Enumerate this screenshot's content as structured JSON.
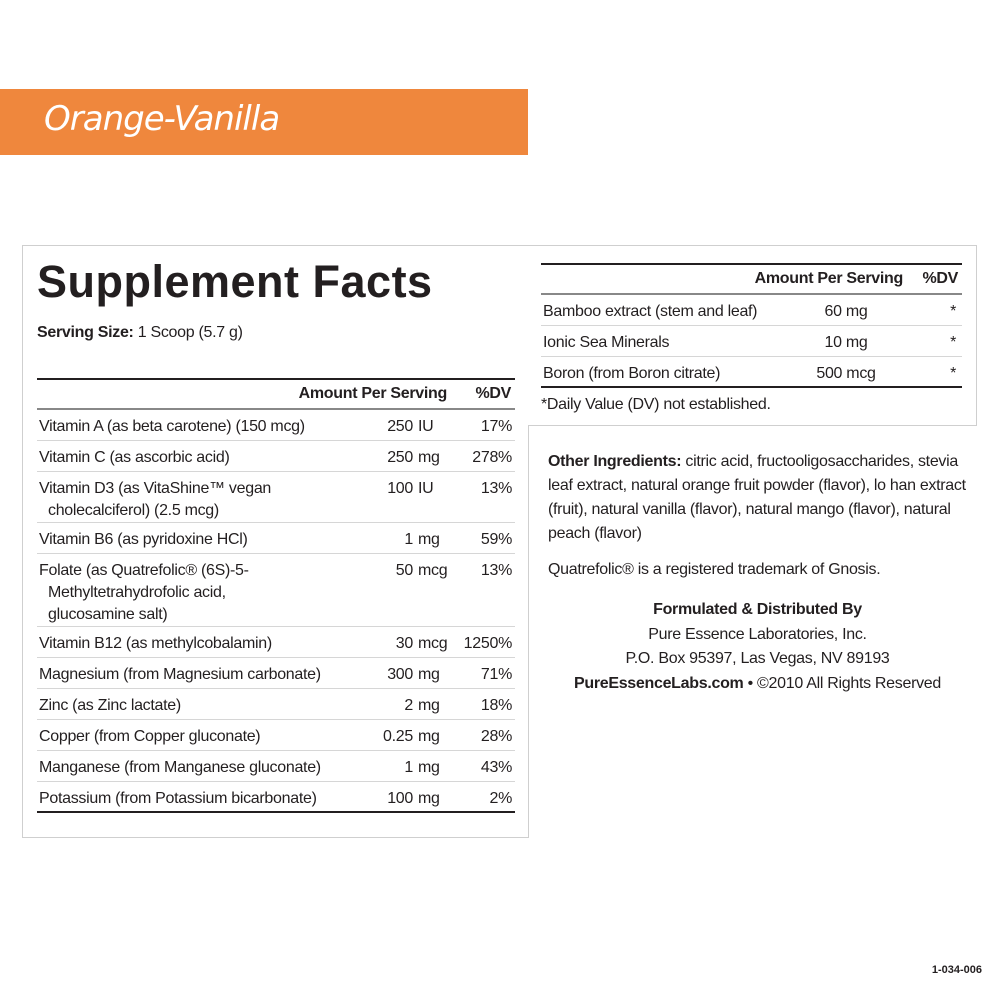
{
  "flavor": "Orange-Vanilla",
  "colors": {
    "banner": "#ef873d",
    "text": "#231f20"
  },
  "title": "Supplement Facts",
  "serving": {
    "label": "Serving Size:",
    "value": "1 Scoop (5.7 g)"
  },
  "headers": {
    "amount": "Amount Per Serving",
    "dv": "%DV"
  },
  "nutrients": [
    {
      "lines": [
        "Vitamin A (as beta carotene) (150 mcg)"
      ],
      "amount": "250",
      "unit": "IU",
      "dv": "17%"
    },
    {
      "lines": [
        "Vitamin C (as ascorbic acid)"
      ],
      "amount": "250",
      "unit": "mg",
      "dv": "278%"
    },
    {
      "lines": [
        "Vitamin D3 (as VitaShine™ vegan",
        "cholecalciferol) (2.5 mcg)"
      ],
      "amount": "100",
      "unit": "IU",
      "dv": "13%"
    },
    {
      "lines": [
        "Vitamin B6 (as pyridoxine HCl)"
      ],
      "amount": "1",
      "unit": "mg",
      "dv": "59%"
    },
    {
      "lines": [
        "Folate (as Quatrefolic® (6S)-5-",
        "Methyltetrahydrofolic acid,",
        "glucosamine salt)"
      ],
      "amount": "50",
      "unit": "mcg",
      "dv": "13%"
    },
    {
      "lines": [
        "Vitamin B12 (as methylcobalamin)"
      ],
      "amount": "30",
      "unit": "mcg",
      "dv": "1250%"
    },
    {
      "lines": [
        "Magnesium (from Magnesium carbonate)"
      ],
      "amount": "300",
      "unit": "mg",
      "dv": "71%"
    },
    {
      "lines": [
        "Zinc (as Zinc lactate)"
      ],
      "amount": "2",
      "unit": "mg",
      "dv": "18%"
    },
    {
      "lines": [
        "Copper (from Copper gluconate)"
      ],
      "amount": "0.25",
      "unit": "mg",
      "dv": "28%"
    },
    {
      "lines": [
        "Manganese (from Manganese gluconate)"
      ],
      "amount": "1",
      "unit": "mg",
      "dv": "43%"
    },
    {
      "lines": [
        "Potassium (from Potassium bicarbonate)"
      ],
      "amount": "100",
      "unit": "mg",
      "dv": "2%"
    }
  ],
  "others": [
    {
      "name": "Bamboo extract (stem and leaf)",
      "amount": "60 mg",
      "dv": "*"
    },
    {
      "name": "Ionic Sea Minerals",
      "amount": "10 mg",
      "dv": "*"
    },
    {
      "name": "Boron (from Boron citrate)",
      "amount": "500 mcg",
      "dv": "*"
    }
  ],
  "footnote": "*Daily Value (DV) not established.",
  "other_ingredients": {
    "label": "Other Ingredients:",
    "text": " citric acid, fructooligosaccharides, stevia leaf extract, natural orange fruit powder (flavor), lo han extract (fruit), natural vanilla (flavor), natural mango (flavor), natural peach (flavor)"
  },
  "trademark": "Quatrefolic® is a registered trademark of Gnosis.",
  "distributor": {
    "heading": "Formulated & Distributed By",
    "name": "Pure Essence Laboratories, Inc.",
    "address": "P.O. Box 95397, Las Vegas, NV 89193",
    "website": "PureEssenceLabs.com",
    "rights": " • ©2010 All Rights Reserved"
  },
  "code": "1-034-006"
}
